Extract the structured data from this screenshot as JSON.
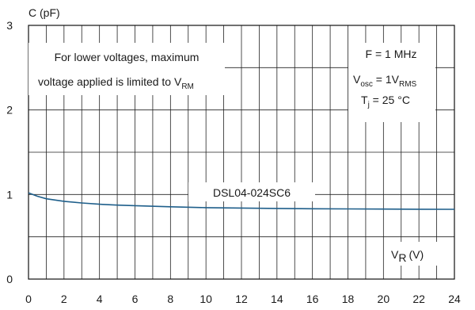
{
  "chart_data": {
    "type": "line",
    "ylabel": "C (pF)",
    "xlabel_main": "V",
    "xlabel_sub": "R",
    "xlabel_unit": "(V)",
    "xlim": [
      0,
      24
    ],
    "ylim": [
      0,
      3
    ],
    "x_ticks": [
      "0",
      "2",
      "4",
      "6",
      "8",
      "10",
      "12",
      "14",
      "16",
      "18",
      "20",
      "22",
      "24"
    ],
    "y_ticks": [
      "0",
      "1",
      "2",
      "3"
    ],
    "grid": true,
    "line_color": "#1f5f8b",
    "series": [
      {
        "name": "DSL04-024SC6",
        "x": [
          0,
          0.5,
          1,
          2,
          3,
          4,
          5,
          6,
          8,
          10,
          12,
          14,
          16,
          18,
          20,
          22,
          24
        ],
        "y": [
          1.02,
          0.98,
          0.95,
          0.92,
          0.9,
          0.885,
          0.875,
          0.868,
          0.855,
          0.845,
          0.84,
          0.835,
          0.832,
          0.83,
          0.828,
          0.826,
          0.825
        ]
      }
    ],
    "annotations": {
      "note_line1": "For lower voltages, maximum",
      "note_line2_main": "voltage applied is limited to V",
      "note_line2_sub": "RM",
      "freq": "F = 1 MHz",
      "vosc_main": "V",
      "vosc_sub1": "osc",
      "vosc_mid": " = 1V",
      "vosc_sub2": "RMS",
      "tj_main": "T",
      "tj_sub": "j",
      "tj_rest": " = 25 °C"
    }
  }
}
